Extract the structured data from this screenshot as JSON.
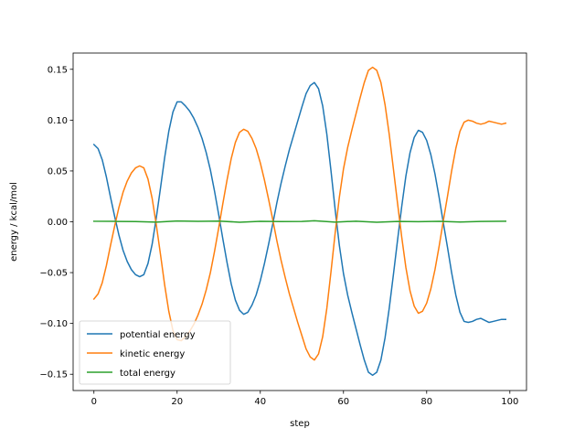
{
  "chart_data": {
    "type": "line",
    "title": "",
    "xlabel": "step",
    "ylabel": "energy / kcal/mol",
    "xlim": [
      -5,
      104
    ],
    "ylim": [
      -0.166,
      0.166
    ],
    "xticks": [
      0,
      20,
      40,
      60,
      80,
      100
    ],
    "yticks": [
      -0.15,
      -0.1,
      -0.05,
      0.0,
      0.05,
      0.1,
      0.15
    ],
    "xtick_labels": [
      "0",
      "20",
      "40",
      "60",
      "80",
      "100"
    ],
    "ytick_labels": [
      "−0.15",
      "−0.10",
      "−0.05",
      "0.00",
      "0.05",
      "0.10",
      "0.15"
    ],
    "grid": false,
    "legend_position": "lower-left",
    "series": [
      {
        "name": "potential energy",
        "color": "#1f77b4",
        "points": [
          [
            0,
            0.076
          ],
          [
            1,
            0.072
          ],
          [
            2,
            0.061
          ],
          [
            3,
            0.044
          ],
          [
            4,
            0.024
          ],
          [
            5,
            0.005
          ],
          [
            6,
            -0.013
          ],
          [
            7,
            -0.028
          ],
          [
            8,
            -0.039
          ],
          [
            9,
            -0.047
          ],
          [
            10,
            -0.052
          ],
          [
            11,
            -0.054
          ],
          [
            12,
            -0.052
          ],
          [
            13,
            -0.041
          ],
          [
            14,
            -0.022
          ],
          [
            15,
            0.004
          ],
          [
            16,
            0.033
          ],
          [
            17,
            0.063
          ],
          [
            18,
            0.089
          ],
          [
            19,
            0.108
          ],
          [
            20,
            0.118
          ],
          [
            21,
            0.118
          ],
          [
            22,
            0.114
          ],
          [
            23,
            0.109
          ],
          [
            24,
            0.102
          ],
          [
            25,
            0.093
          ],
          [
            26,
            0.082
          ],
          [
            27,
            0.068
          ],
          [
            28,
            0.051
          ],
          [
            29,
            0.03
          ],
          [
            30,
            0.007
          ],
          [
            31,
            -0.017
          ],
          [
            32,
            -0.04
          ],
          [
            33,
            -0.061
          ],
          [
            34,
            -0.077
          ],
          [
            35,
            -0.087
          ],
          [
            36,
            -0.091
          ],
          [
            37,
            -0.089
          ],
          [
            38,
            -0.082
          ],
          [
            39,
            -0.072
          ],
          [
            40,
            -0.058
          ],
          [
            41,
            -0.041
          ],
          [
            42,
            -0.022
          ],
          [
            43,
            -0.002
          ],
          [
            44,
            0.019
          ],
          [
            45,
            0.038
          ],
          [
            46,
            0.055
          ],
          [
            47,
            0.071
          ],
          [
            48,
            0.085
          ],
          [
            49,
            0.099
          ],
          [
            50,
            0.113
          ],
          [
            51,
            0.126
          ],
          [
            52,
            0.134
          ],
          [
            53,
            0.137
          ],
          [
            54,
            0.131
          ],
          [
            55,
            0.114
          ],
          [
            56,
            0.086
          ],
          [
            57,
            0.05
          ],
          [
            58,
            0.012
          ],
          [
            59,
            -0.023
          ],
          [
            60,
            -0.051
          ],
          [
            61,
            -0.072
          ],
          [
            62,
            -0.089
          ],
          [
            63,
            -0.105
          ],
          [
            64,
            -0.121
          ],
          [
            65,
            -0.136
          ],
          [
            66,
            -0.148
          ],
          [
            67,
            -0.151
          ],
          [
            68,
            -0.148
          ],
          [
            69,
            -0.136
          ],
          [
            70,
            -0.114
          ],
          [
            71,
            -0.085
          ],
          [
            72,
            -0.052
          ],
          [
            73,
            -0.018
          ],
          [
            74,
            0.015
          ],
          [
            75,
            0.045
          ],
          [
            76,
            0.068
          ],
          [
            77,
            0.083
          ],
          [
            78,
            0.09
          ],
          [
            79,
            0.088
          ],
          [
            80,
            0.08
          ],
          [
            81,
            0.066
          ],
          [
            82,
            0.047
          ],
          [
            83,
            0.024
          ],
          [
            84,
            -0.001
          ],
          [
            85,
            -0.025
          ],
          [
            86,
            -0.05
          ],
          [
            87,
            -0.072
          ],
          [
            88,
            -0.089
          ],
          [
            89,
            -0.098
          ],
          [
            90,
            -0.099
          ],
          [
            91,
            -0.098
          ],
          [
            92,
            -0.096
          ],
          [
            93,
            -0.095
          ],
          [
            94,
            -0.097
          ],
          [
            95,
            -0.099
          ],
          [
            96,
            -0.098
          ],
          [
            97,
            -0.097
          ],
          [
            98,
            -0.096
          ],
          [
            99,
            -0.096
          ]
        ]
      },
      {
        "name": "kinetic energy",
        "color": "#ff7f0e",
        "points": [
          [
            0,
            -0.076
          ],
          [
            1,
            -0.071
          ],
          [
            2,
            -0.06
          ],
          [
            3,
            -0.043
          ],
          [
            4,
            -0.023
          ],
          [
            5,
            -0.004
          ],
          [
            6,
            0.014
          ],
          [
            7,
            0.029
          ],
          [
            8,
            0.04
          ],
          [
            9,
            0.048
          ],
          [
            10,
            0.053
          ],
          [
            11,
            0.055
          ],
          [
            12,
            0.053
          ],
          [
            13,
            0.042
          ],
          [
            14,
            0.023
          ],
          [
            15,
            -0.003
          ],
          [
            16,
            -0.032
          ],
          [
            17,
            -0.062
          ],
          [
            18,
            -0.088
          ],
          [
            19,
            -0.107
          ],
          [
            20,
            -0.116
          ],
          [
            21,
            -0.117
          ],
          [
            22,
            -0.113
          ],
          [
            23,
            -0.108
          ],
          [
            24,
            -0.101
          ],
          [
            25,
            -0.092
          ],
          [
            26,
            -0.081
          ],
          [
            27,
            -0.067
          ],
          [
            28,
            -0.05
          ],
          [
            29,
            -0.029
          ],
          [
            30,
            -0.006
          ],
          [
            31,
            0.018
          ],
          [
            32,
            0.041
          ],
          [
            33,
            0.062
          ],
          [
            34,
            0.078
          ],
          [
            35,
            0.088
          ],
          [
            36,
            0.091
          ],
          [
            37,
            0.089
          ],
          [
            38,
            0.082
          ],
          [
            39,
            0.072
          ],
          [
            40,
            0.058
          ],
          [
            41,
            0.041
          ],
          [
            42,
            0.022
          ],
          [
            43,
            0.002
          ],
          [
            44,
            -0.019
          ],
          [
            45,
            -0.038
          ],
          [
            46,
            -0.055
          ],
          [
            47,
            -0.071
          ],
          [
            48,
            -0.085
          ],
          [
            49,
            -0.099
          ],
          [
            50,
            -0.112
          ],
          [
            51,
            -0.125
          ],
          [
            52,
            -0.133
          ],
          [
            53,
            -0.136
          ],
          [
            54,
            -0.13
          ],
          [
            55,
            -0.113
          ],
          [
            56,
            -0.085
          ],
          [
            57,
            -0.049
          ],
          [
            58,
            -0.011
          ],
          [
            59,
            0.024
          ],
          [
            60,
            0.052
          ],
          [
            61,
            0.073
          ],
          [
            62,
            0.09
          ],
          [
            63,
            0.106
          ],
          [
            64,
            0.122
          ],
          [
            65,
            0.137
          ],
          [
            66,
            0.149
          ],
          [
            67,
            0.152
          ],
          [
            68,
            0.149
          ],
          [
            69,
            0.137
          ],
          [
            70,
            0.115
          ],
          [
            71,
            0.086
          ],
          [
            72,
            0.052
          ],
          [
            73,
            0.018
          ],
          [
            74,
            -0.015
          ],
          [
            75,
            -0.045
          ],
          [
            76,
            -0.068
          ],
          [
            77,
            -0.083
          ],
          [
            78,
            -0.09
          ],
          [
            79,
            -0.088
          ],
          [
            80,
            -0.08
          ],
          [
            81,
            -0.066
          ],
          [
            82,
            -0.047
          ],
          [
            83,
            -0.024
          ],
          [
            84,
            0.001
          ],
          [
            85,
            0.025
          ],
          [
            86,
            0.05
          ],
          [
            87,
            0.072
          ],
          [
            88,
            0.089
          ],
          [
            89,
            0.098
          ],
          [
            90,
            0.1
          ],
          [
            91,
            0.099
          ],
          [
            92,
            0.097
          ],
          [
            93,
            0.096
          ],
          [
            94,
            0.097
          ],
          [
            95,
            0.099
          ],
          [
            96,
            0.098
          ],
          [
            97,
            0.097
          ],
          [
            98,
            0.096
          ],
          [
            99,
            0.097
          ]
        ]
      },
      {
        "name": "total energy",
        "color": "#2ca02c",
        "points": [
          [
            0,
            0.0005
          ],
          [
            5,
            0.0004
          ],
          [
            10,
            0.0002
          ],
          [
            15,
            -0.0003
          ],
          [
            20,
            0.0008
          ],
          [
            25,
            0.0004
          ],
          [
            30,
            0.0007
          ],
          [
            35,
            -0.0004
          ],
          [
            40,
            0.0004
          ],
          [
            45,
            0.0002
          ],
          [
            50,
            0.0003
          ],
          [
            53,
            0.001
          ],
          [
            58,
            -0.0003
          ],
          [
            63,
            0.0006
          ],
          [
            68,
            -0.0005
          ],
          [
            73,
            0.0003
          ],
          [
            78,
            0.0001
          ],
          [
            83,
            0.0004
          ],
          [
            88,
            -0.0002
          ],
          [
            93,
            0.0003
          ],
          [
            99,
            0.0006
          ]
        ]
      }
    ]
  }
}
